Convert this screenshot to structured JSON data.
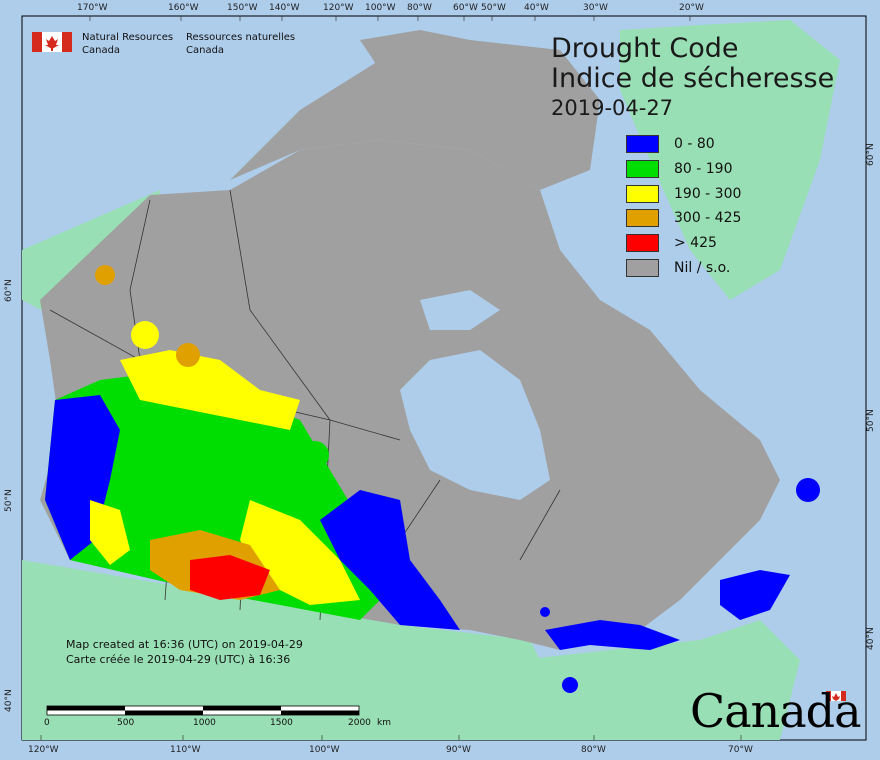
{
  "map": {
    "title_en": "Drought Code",
    "title_fr": "Indice de sécheresse",
    "date": "2019-04-27",
    "legend": [
      {
        "label": "0 - 80",
        "color": "#0000ff"
      },
      {
        "label": "80 - 190",
        "color": "#00dd00"
      },
      {
        "label": "190 - 300",
        "color": "#ffff00"
      },
      {
        "label": "300 - 425",
        "color": "#e0a000"
      },
      {
        "label": "> 425",
        "color": "#ff0000"
      },
      {
        "label": "Nil / s.o.",
        "color": "#a0a0a0"
      }
    ],
    "colors": {
      "ocean": "#aecdeb",
      "land_other": "#99dfb5",
      "nil": "#a0a0a0"
    }
  },
  "header": {
    "org_en_1": "Natural Resources",
    "org_en_2": "Canada",
    "org_fr_1": "Ressources naturelles",
    "org_fr_2": "Canada"
  },
  "notes": {
    "created_en": "Map created at 16:36 (UTC) on 2019-04-29",
    "created_fr": "Carte créée le 2019-04-29 (UTC) à 16:36"
  },
  "scale": {
    "ticks": [
      "0",
      "500",
      "1000",
      "1500",
      "2000"
    ],
    "unit": "km"
  },
  "wordmark": "Canada",
  "graticule": {
    "top": [
      "170°W",
      "160°W",
      "150°W",
      "140°W",
      "120°W",
      "100°W",
      "80°W",
      "60°W",
      "50°W",
      "40°W",
      "30°W",
      "20°W"
    ],
    "bottom": [
      "120°W",
      "110°W",
      "100°W",
      "90°W",
      "80°W",
      "70°W"
    ],
    "left": [
      "60°N",
      "50°N",
      "40°N"
    ],
    "right": [
      "60°N",
      "50°N",
      "40°N"
    ]
  }
}
